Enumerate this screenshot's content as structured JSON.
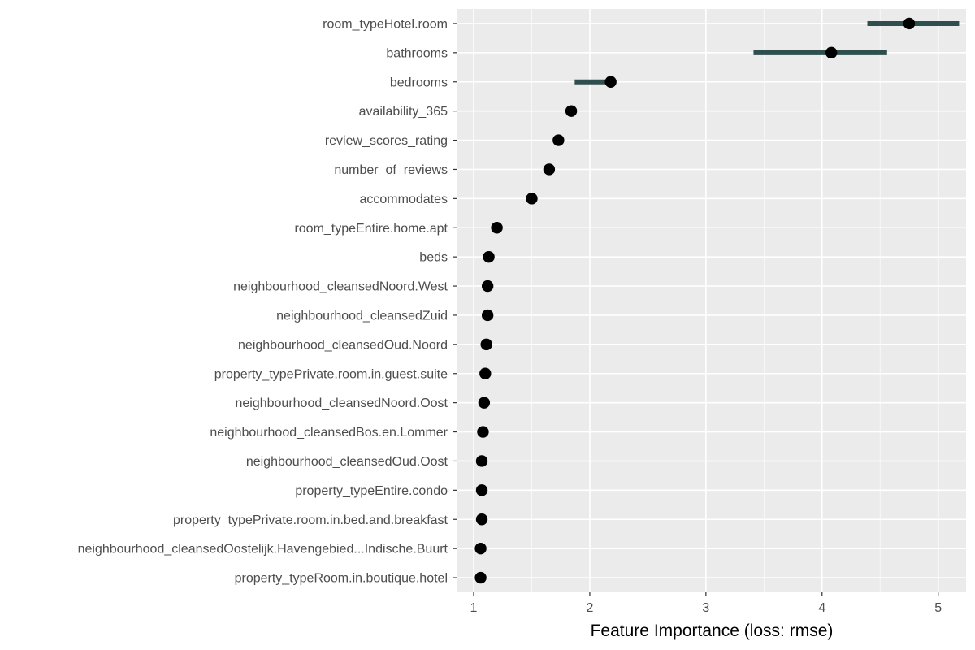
{
  "chart_data": {
    "type": "scatter",
    "title": "",
    "xlabel": "Feature Importance (loss: rmse)",
    "ylabel": "",
    "xlim": [
      0.86,
      5.24
    ],
    "xticks": [
      1,
      2,
      3,
      4,
      5
    ],
    "grid": true,
    "features": [
      {
        "name": "room_typeHotel.room",
        "value": 4.75,
        "low": 4.39,
        "high": 5.18
      },
      {
        "name": "bathrooms",
        "value": 4.08,
        "low": 3.41,
        "high": 4.56
      },
      {
        "name": "bedrooms",
        "value": 2.18,
        "low": 1.87,
        "high": 2.18
      },
      {
        "name": "availability_365",
        "value": 1.84,
        "low": 1.84,
        "high": 1.84
      },
      {
        "name": "review_scores_rating",
        "value": 1.73,
        "low": 1.73,
        "high": 1.73
      },
      {
        "name": "number_of_reviews",
        "value": 1.65,
        "low": 1.65,
        "high": 1.65
      },
      {
        "name": "accommodates",
        "value": 1.5,
        "low": 1.5,
        "high": 1.5
      },
      {
        "name": "room_typeEntire.home.apt",
        "value": 1.2,
        "low": 1.2,
        "high": 1.2
      },
      {
        "name": "beds",
        "value": 1.13,
        "low": 1.13,
        "high": 1.13
      },
      {
        "name": "neighbourhood_cleansedNoord.West",
        "value": 1.12,
        "low": 1.12,
        "high": 1.12
      },
      {
        "name": "neighbourhood_cleansedZuid",
        "value": 1.12,
        "low": 1.12,
        "high": 1.12
      },
      {
        "name": "neighbourhood_cleansedOud.Noord",
        "value": 1.11,
        "low": 1.11,
        "high": 1.11
      },
      {
        "name": "property_typePrivate.room.in.guest.suite",
        "value": 1.1,
        "low": 1.1,
        "high": 1.1
      },
      {
        "name": "neighbourhood_cleansedNoord.Oost",
        "value": 1.09,
        "low": 1.09,
        "high": 1.09
      },
      {
        "name": "neighbourhood_cleansedBos.en.Lommer",
        "value": 1.08,
        "low": 1.08,
        "high": 1.08
      },
      {
        "name": "neighbourhood_cleansedOud.Oost",
        "value": 1.07,
        "low": 1.07,
        "high": 1.07
      },
      {
        "name": "property_typeEntire.condo",
        "value": 1.07,
        "low": 1.07,
        "high": 1.07
      },
      {
        "name": "property_typePrivate.room.in.bed.and.breakfast",
        "value": 1.07,
        "low": 1.07,
        "high": 1.07
      },
      {
        "name": "neighbourhood_cleansedOostelijk.Havengebied...Indische.Buurt",
        "value": 1.06,
        "low": 1.06,
        "high": 1.06
      },
      {
        "name": "property_typeRoom.in.boutique.hotel",
        "value": 1.06,
        "low": 1.06,
        "high": 1.06
      }
    ],
    "colors": {
      "panel_background": "#ebebeb",
      "grid_major": "#ffffff",
      "interval": "#2f4f4f",
      "point": "#000000"
    }
  }
}
